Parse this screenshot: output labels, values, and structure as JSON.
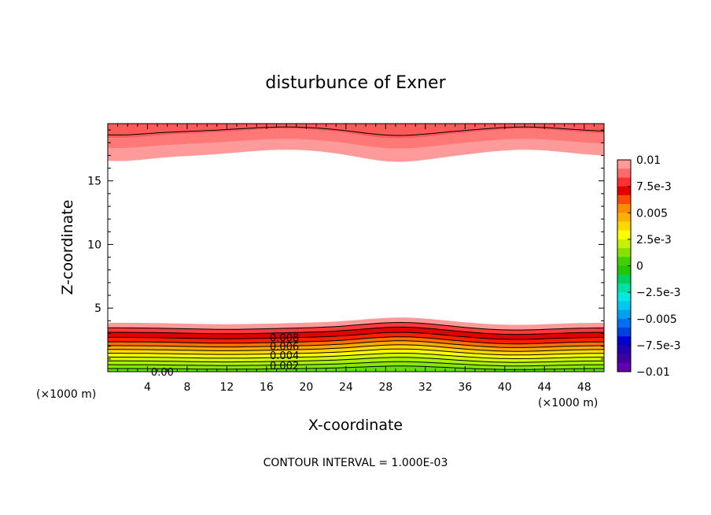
{
  "chart_data": {
    "type": "contour",
    "title": "disturbunce of Exner",
    "xlabel": "X-coordinate",
    "ylabel": "Z-coordinate",
    "x_unit_left": "(×1000 m)",
    "x_unit_right": "(×1000 m)",
    "footer": "CONTOUR INTERVAL = 1.000E-03",
    "xlim": [
      0,
      50
    ],
    "ylim": [
      0,
      19.5
    ],
    "x_ticks": [
      4,
      8,
      12,
      16,
      20,
      24,
      28,
      32,
      36,
      40,
      44,
      48
    ],
    "y_ticks": [
      5,
      10,
      15
    ],
    "contour_labels": [
      {
        "text": "0.008",
        "x": 17.8,
        "z": 2.7
      },
      {
        "text": "0.006",
        "x": 17.8,
        "z": 2.0
      },
      {
        "text": "0.004",
        "x": 17.8,
        "z": 1.3
      },
      {
        "text": "0.002",
        "x": 17.8,
        "z": 0.5
      },
      {
        "text": "0.00",
        "x": 5.5,
        "z": 0.0
      }
    ],
    "colorbar": {
      "levels": [
        0.01,
        0.0075,
        0.005,
        0.0025,
        0,
        -0.0025,
        -0.005,
        -0.0075,
        -0.01
      ],
      "labels": [
        "0.01",
        "7.5e-3",
        "0.005",
        "2.5e-3",
        "0",
        "−2.5e-3",
        "−0.005",
        "−7.5e-3",
        "−0.01"
      ],
      "colors": [
        "#ff9a9a",
        "#ff6a6a",
        "#ff3030",
        "#e00000",
        "#ff4a00",
        "#ff8c00",
        "#ffb000",
        "#ffd800",
        "#ffff00",
        "#c8f000",
        "#88e000",
        "#40d000",
        "#20c800",
        "#00d060",
        "#00e0a0",
        "#00e8e0",
        "#00c8f0",
        "#00a0f0",
        "#0070f0",
        "#0040e0",
        "#0000d0",
        "#2000b0",
        "#4000a0",
        "#6000b0"
      ]
    }
  }
}
